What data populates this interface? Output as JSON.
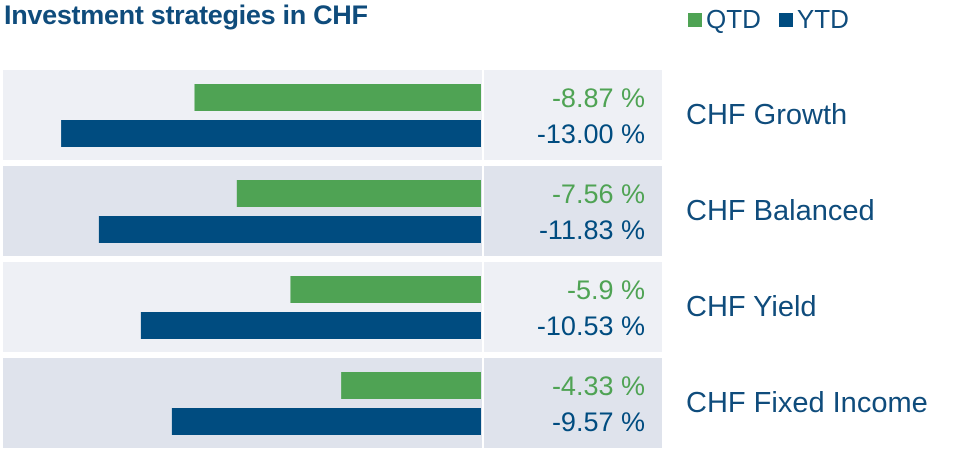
{
  "title": "Investment strategies in CHF",
  "legend": [
    {
      "label": "QTD",
      "color": "#4fa354"
    },
    {
      "label": "YTD",
      "color": "#004c80"
    }
  ],
  "colors": {
    "row_light": "#eef0f5",
    "row_dark": "#dfe3ec",
    "qtd": "#4fa354",
    "ytd": "#004c80",
    "category_text": "#0f4c7c"
  },
  "chart_data": {
    "type": "bar",
    "orientation": "horizontal",
    "title": "Investment strategies in CHF",
    "categories": [
      "CHF Growth",
      "CHF Balanced",
      "CHF Yield",
      "CHF Fixed Income"
    ],
    "series": [
      {
        "name": "QTD",
        "values": [
          -8.87,
          -7.56,
          -5.9,
          -4.33
        ],
        "labels": [
          "-8.87 %",
          "-7.56 %",
          "-5.9 %",
          "-4.33 %"
        ]
      },
      {
        "name": "YTD",
        "values": [
          -13.0,
          -11.83,
          -10.53,
          -9.57
        ],
        "labels": [
          "-13.00 %",
          "-11.83 %",
          "-10.53 %",
          "-9.57 %"
        ]
      }
    ],
    "xlim": [
      -15,
      0
    ],
    "grid": false,
    "legend_position": "top-right"
  }
}
